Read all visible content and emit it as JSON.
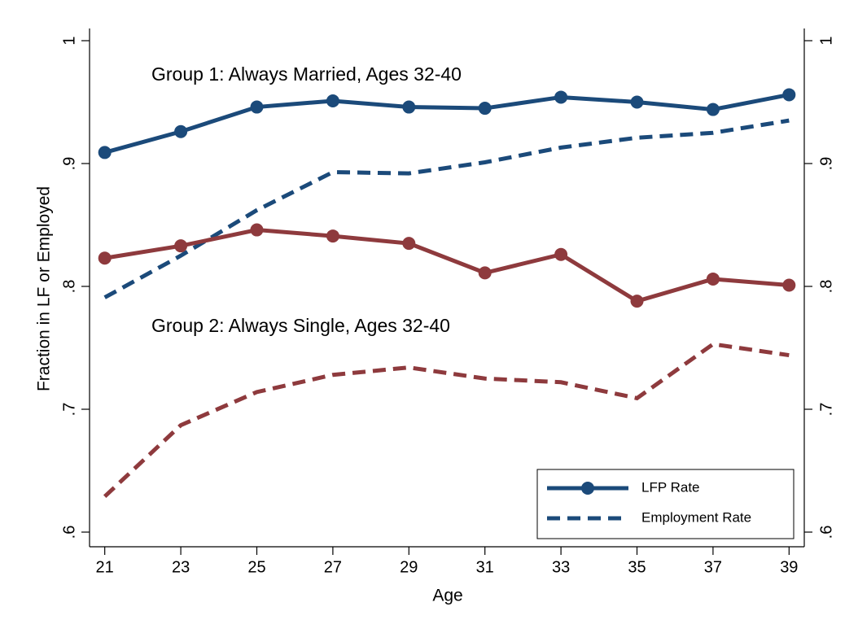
{
  "chart_data": {
    "type": "line",
    "x_label": "Age",
    "y_label": "Fraction in LF or Employed",
    "x": [
      21,
      23,
      25,
      27,
      29,
      31,
      33,
      35,
      37,
      39
    ],
    "xlim": [
      20.6,
      39.4
    ],
    "xticks": [
      21,
      23,
      25,
      27,
      29,
      31,
      33,
      35,
      37,
      39
    ],
    "ylim": [
      0.59,
      1.01
    ],
    "yticks": [
      {
        "value": 0.6,
        "label": ".6"
      },
      {
        "value": 0.7,
        "label": ".7"
      },
      {
        "value": 0.8,
        "label": ".8"
      },
      {
        "value": 0.9,
        "label": ".9"
      },
      1
    ],
    "y2lim": [
      0.59,
      1.01
    ],
    "y2ticks": [
      {
        "value": 0.6,
        "label": ".6"
      },
      {
        "value": 0.7,
        "label": ".7"
      },
      {
        "value": 0.8,
        "label": ".8"
      },
      {
        "value": 0.9,
        "label": ".9"
      },
      1
    ],
    "grid": false,
    "groups": [
      {
        "annotation": "Group 1: Always Married, Ages 32-40",
        "color": "#1b4a7a",
        "lfp": [
          0.909,
          0.926,
          0.946,
          0.951,
          0.946,
          0.945,
          0.954,
          0.95,
          0.944,
          0.956
        ],
        "employment": [
          0.791,
          0.825,
          0.862,
          0.893,
          0.892,
          0.901,
          0.913,
          0.921,
          0.925,
          0.935
        ]
      },
      {
        "annotation": "Group 2: Always Single, Ages 32-40",
        "color": "#8e3a3d",
        "lfp": [
          0.823,
          0.833,
          0.846,
          0.841,
          0.835,
          0.811,
          0.826,
          0.788,
          0.806,
          0.801
        ],
        "employment": [
          0.629,
          0.687,
          0.714,
          0.728,
          0.734,
          0.725,
          0.722,
          0.709,
          0.753,
          0.744
        ]
      }
    ],
    "legend": {
      "entries": [
        "LFP Rate",
        "Employment Rate"
      ],
      "color": "#1b4a7a",
      "position": "lower right"
    }
  }
}
